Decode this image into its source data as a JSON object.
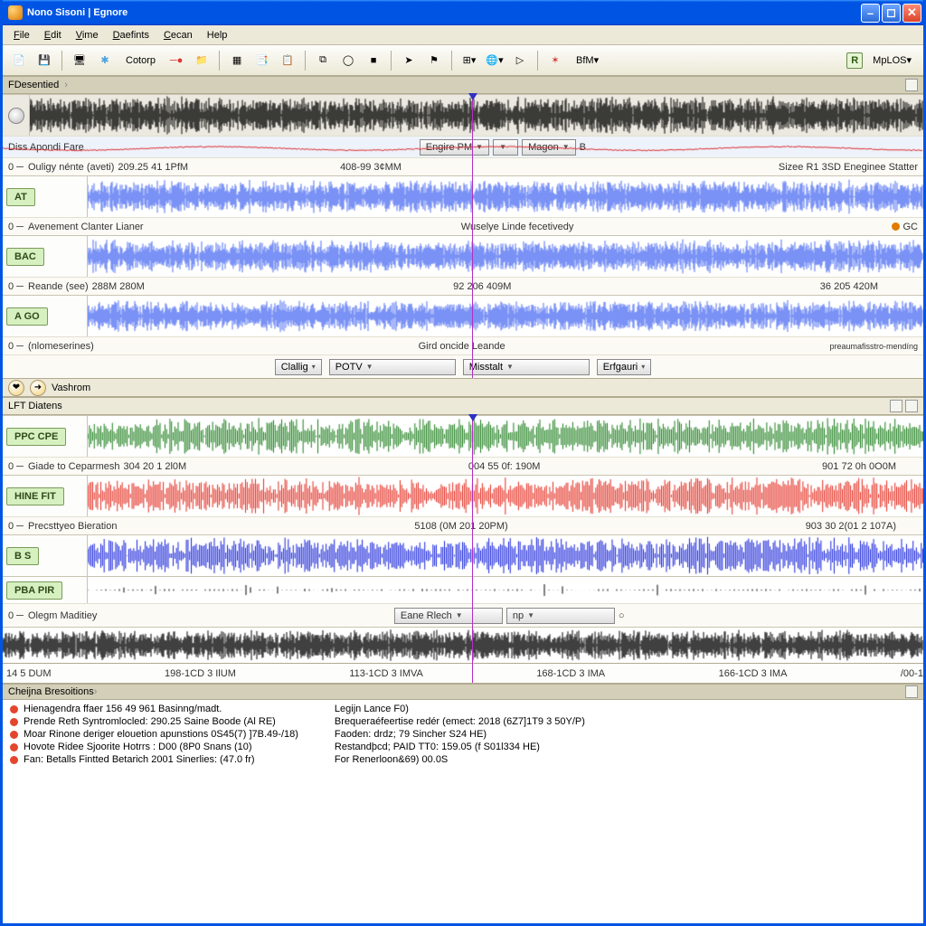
{
  "app": {
    "title": "Nono Sisoni | Egnore"
  },
  "menu": [
    "File",
    "Edit",
    "Vime",
    "Daefints",
    "Cecan",
    "Help"
  ],
  "menu_underline_idx": [
    0,
    0,
    0,
    0,
    0,
    0
  ],
  "toolbar": {
    "cotorp": "Cotorp",
    "bfm": "BfM",
    "mplos": "MpLOS"
  },
  "colors": {
    "wave_black": "#000000",
    "wave_blue": "#4e6ef2",
    "wave_green": "#1a7d1a",
    "wave_red": "#e32b1f",
    "wave_dkblue": "#1522d8",
    "playhead": "#b030c0",
    "accent_chip_bg": "#d7f0c0",
    "accent_chip_border": "#7a9a5a"
  },
  "panel1": {
    "head": "FDesentied",
    "param_row": {
      "left": "Diss   Apondi Fare",
      "dd1": "Engire PM",
      "dd2": "Magon",
      "right": " B"
    },
    "tracks": [
      {
        "chip": "AT",
        "label_prefix": "0 ── ",
        "label": "Ouligy nénte (aveti)",
        "timeA": "209.25 41 1PfM",
        "timeB": "408-99 3¢MM",
        "right": "Sizee R1 3SD Eneginee Statter",
        "wave_color": "#4e6ef2",
        "amp": 0.85,
        "dens": 2
      },
      {
        "chip": "BAC",
        "label_prefix": "0 ── ",
        "label": "Avenement Clanter Lianer",
        "mid": "Wuselye Linde fecetivedy",
        "right_dot": "GC",
        "wave_color": "#4e6ef2",
        "amp": 0.85,
        "dens": 2
      },
      {
        "chip": "A   GO",
        "label_prefix": "0 ── ",
        "label": "Reande (see)",
        "timeA": "288M 280M",
        "timeB": "92 206 409M",
        "timeC": "36 205 420M",
        "wave_color": "#4e6ef2",
        "amp": 0.8,
        "dens": 2
      }
    ],
    "bottom_label": {
      "prefix": "0 ── ",
      "text": "(nlomeserines)",
      "mid": "Gird oncide Leande",
      "right": "preaumafisstro-mendíng"
    },
    "bottom_dd": [
      "Clallig",
      "POTV",
      "Misstalt",
      "Erfgauri"
    ]
  },
  "secondary_bar": {
    "label": "Vashrom"
  },
  "panel2": {
    "head": "LFT Diatens",
    "tracks": [
      {
        "chip": "PPC  CPE",
        "label_prefix": "0 ── ",
        "label": "Giade to Ceparmesh",
        "timeA": "304 20 1 2l0M",
        "timeB": "004 55 0f: 190M",
        "timeC": "901 72 0h 0O0M",
        "wave_color": "#1a7d1a",
        "amp": 0.95,
        "dens": 1.1
      },
      {
        "chip": "HINE  FIT",
        "label_prefix": "0 ── ",
        "label": "Precsttyeo Bieration",
        "timeB": "5108 (0M 201 20PM)",
        "timeC": "903 30 2(01 2 107A)",
        "wave_color": "#e32b1f",
        "amp": 0.95,
        "dens": 1.1
      },
      {
        "chip": "B    S",
        "wave_color": "#1522d8",
        "amp": 0.95,
        "dens": 1.1
      },
      {
        "chip": "PBA  PIR",
        "wave_color": "#000000",
        "amp": 0.45,
        "dens": 0.4,
        "spikes": true
      }
    ],
    "oxy_row": {
      "prefix": "0 ── ",
      "label": "Olegm Maditiey",
      "dd1": "Eane Rlech",
      "dd2": "np"
    },
    "ruler": [
      "14 5 DUM",
      "198-1CD 3 IlUM",
      "113-1CD 3 IMVA",
      "168-1CD 3 IMA",
      "166-1CD 3 IMA",
      "/00-1"
    ]
  },
  "log": {
    "head": "Cheijna Bresoitions",
    "left": [
      "Hienagendra ffaer 156 49 961 Basinng/madt.",
      "Prende Reth Syntromlocled: 290.25 Saine Boode (Al RE)",
      "Moar Rinone deriger elouetion apunstions 0S45(7) ]7B.49‑/18)",
      "Hovote Ridee Sjoorite Hotrrs : D00 (8P0 Snans (10)",
      "Fan: Betalls Fintted Betarich 2001 Sinerlies: (47.0 fr)"
    ],
    "right": [
      "Legijn Lance F0)",
      "Brequeraéfeertise redér (emect: 2018 (6Z7]1T9 3 50Y/P)",
      "Faoden: drdz; 79 Sincher S24 HE)",
      "Restandþcd; PAID TT0: 159.05 (f S01l334 HE)",
      "For Renerloon&69) 00.0S"
    ]
  },
  "playhead_pct": 51
}
